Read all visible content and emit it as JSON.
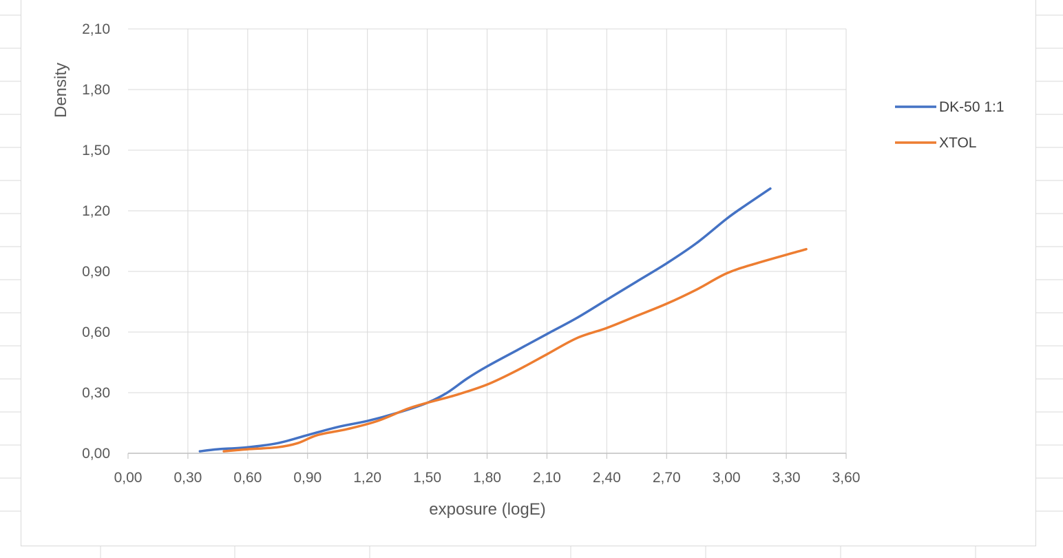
{
  "chart_data": {
    "type": "line",
    "title": "",
    "xlabel": "exposure (logE)",
    "ylabel": "Density",
    "xlim": [
      0,
      3.6
    ],
    "ylim": [
      0,
      2.1
    ],
    "x_ticks": [
      "0,00",
      "0,30",
      "0,60",
      "0,90",
      "1,20",
      "1,50",
      "1,80",
      "2,10",
      "2,40",
      "2,70",
      "3,00",
      "3,30",
      "3,60"
    ],
    "y_ticks": [
      "0,00",
      "0,30",
      "0,60",
      "0,90",
      "1,20",
      "1,50",
      "1,80",
      "2,10"
    ],
    "grid": true,
    "legend_position": "right",
    "series": [
      {
        "name": "DK-50 1:1",
        "color": "#4472C4",
        "x": [
          0.36,
          0.45,
          0.6,
          0.75,
          0.9,
          1.05,
          1.2,
          1.35,
          1.5,
          1.6,
          1.7,
          1.8,
          1.95,
          2.1,
          2.25,
          2.4,
          2.55,
          2.7,
          2.85,
          3.0,
          3.1,
          3.22
        ],
        "y": [
          0.01,
          0.02,
          0.03,
          0.05,
          0.09,
          0.13,
          0.16,
          0.2,
          0.25,
          0.3,
          0.37,
          0.43,
          0.51,
          0.59,
          0.67,
          0.76,
          0.85,
          0.94,
          1.04,
          1.16,
          1.23,
          1.31
        ]
      },
      {
        "name": "XTOL",
        "color": "#ED7D31",
        "x": [
          0.48,
          0.6,
          0.75,
          0.85,
          0.95,
          1.1,
          1.25,
          1.4,
          1.5,
          1.65,
          1.8,
          1.95,
          2.1,
          2.25,
          2.4,
          2.55,
          2.7,
          2.85,
          3.0,
          3.15,
          3.4
        ],
        "y": [
          0.01,
          0.02,
          0.03,
          0.05,
          0.09,
          0.12,
          0.16,
          0.22,
          0.25,
          0.29,
          0.34,
          0.41,
          0.49,
          0.57,
          0.62,
          0.68,
          0.74,
          0.81,
          0.89,
          0.94,
          1.01
        ]
      }
    ]
  }
}
